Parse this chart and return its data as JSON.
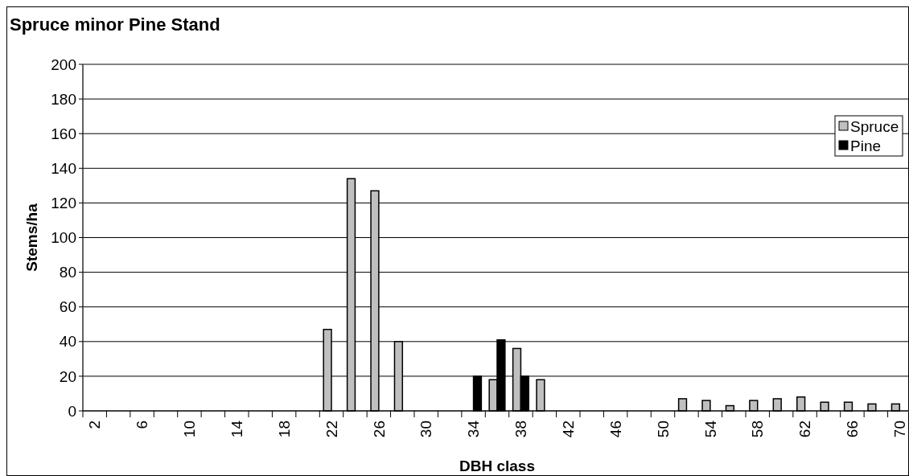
{
  "chart_data": {
    "type": "bar",
    "title": "Spruce minor Pine Stand",
    "xlabel": "DBH class",
    "ylabel": "Stems/ha",
    "categories": [
      "2",
      null,
      "6",
      null,
      "10",
      null,
      "14",
      null,
      "18",
      null,
      "22",
      null,
      "26",
      null,
      "30",
      null,
      "34",
      null,
      "38",
      null,
      "42",
      null,
      "46",
      null,
      "50",
      null,
      "54",
      null,
      "58",
      null,
      "62",
      null,
      "66",
      null,
      "70"
    ],
    "series": [
      {
        "name": "Spruce",
        "color": "#bfbfbf",
        "values": [
          0,
          0,
          0,
          0,
          0,
          0,
          0,
          0,
          0,
          0,
          47,
          134,
          127,
          40,
          0,
          0,
          0,
          18,
          36,
          18,
          0,
          0,
          0,
          0,
          0,
          7,
          6,
          3,
          6,
          7,
          8,
          5,
          5,
          4,
          4
        ]
      },
      {
        "name": "Pine",
        "color": "#000000",
        "values": [
          0,
          0,
          0,
          0,
          0,
          0,
          0,
          0,
          0,
          0,
          0,
          0,
          0,
          0,
          0,
          0,
          20,
          41,
          20,
          0,
          0,
          0,
          0,
          0,
          0,
          0,
          0,
          0,
          0,
          0,
          0,
          0,
          0,
          0,
          0
        ]
      }
    ],
    "ylim": [
      0,
      200
    ],
    "yticks": [
      0,
      20,
      40,
      60,
      80,
      100,
      120,
      140,
      160,
      180,
      200
    ],
    "grid": "y",
    "legend": "top right"
  }
}
